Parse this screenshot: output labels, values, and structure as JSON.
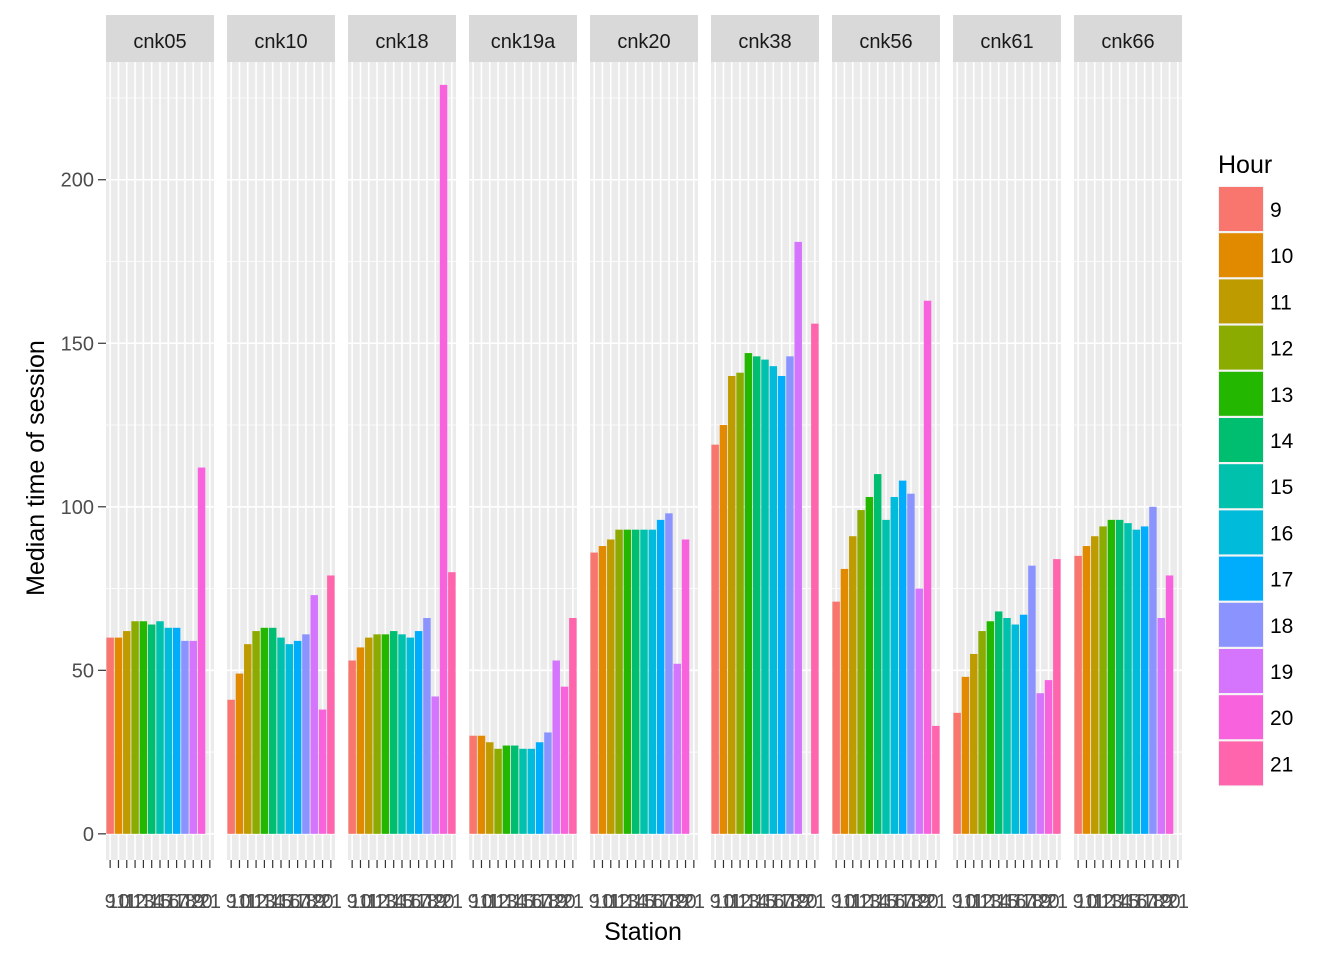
{
  "chart_data": {
    "type": "bar",
    "xlabel": "Station",
    "ylabel": "Median time of session",
    "ylim": [
      -8,
      236
    ],
    "yticks": [
      0,
      50,
      100,
      150,
      200
    ],
    "hours": [
      9,
      10,
      11,
      12,
      13,
      14,
      15,
      16,
      17,
      18,
      19,
      20,
      21
    ],
    "hour_tick_labels": [
      "9",
      "10",
      "11",
      "12",
      "13",
      "14",
      "15",
      "16",
      "17",
      "18",
      "19",
      "20",
      "21"
    ],
    "legend": {
      "title": "Hour",
      "position": "right"
    },
    "colors": {
      "9": "#F8766D",
      "10": "#E18A00",
      "11": "#BE9C00",
      "12": "#8CAB00",
      "13": "#24B700",
      "14": "#00BE70",
      "15": "#00C1AB",
      "16": "#00BBDA",
      "17": "#00ACFC",
      "18": "#8B93FF",
      "19": "#D575FE",
      "20": "#F962DD",
      "21": "#FF65AC"
    },
    "grid": true,
    "panels": [
      {
        "name": "cnk05",
        "values": [
          60,
          60,
          62,
          65,
          65,
          64,
          65,
          63,
          63,
          59,
          59,
          112,
          null
        ]
      },
      {
        "name": "cnk10",
        "values": [
          41,
          49,
          58,
          62,
          63,
          63,
          60,
          58,
          59,
          61,
          73,
          38,
          79
        ]
      },
      {
        "name": "cnk18",
        "values": [
          53,
          57,
          60,
          61,
          61,
          62,
          61,
          60,
          62,
          66,
          42,
          229,
          80
        ]
      },
      {
        "name": "cnk19a",
        "values": [
          30,
          30,
          28,
          26,
          27,
          27,
          26,
          26,
          28,
          31,
          53,
          45,
          66
        ]
      },
      {
        "name": "cnk20",
        "values": [
          86,
          88,
          90,
          93,
          93,
          93,
          93,
          93,
          96,
          98,
          52,
          90,
          null
        ]
      },
      {
        "name": "cnk38",
        "values": [
          119,
          125,
          140,
          141,
          147,
          146,
          145,
          143,
          140,
          146,
          181,
          null,
          156
        ]
      },
      {
        "name": "cnk56",
        "values": [
          71,
          81,
          91,
          99,
          103,
          110,
          96,
          103,
          108,
          104,
          75,
          163,
          33
        ]
      },
      {
        "name": "cnk61",
        "values": [
          37,
          48,
          55,
          62,
          65,
          68,
          66,
          64,
          67,
          82,
          43,
          47,
          84
        ]
      },
      {
        "name": "cnk66",
        "values": [
          85,
          88,
          91,
          94,
          96,
          96,
          95,
          93,
          94,
          100,
          66,
          79,
          null
        ]
      }
    ]
  }
}
